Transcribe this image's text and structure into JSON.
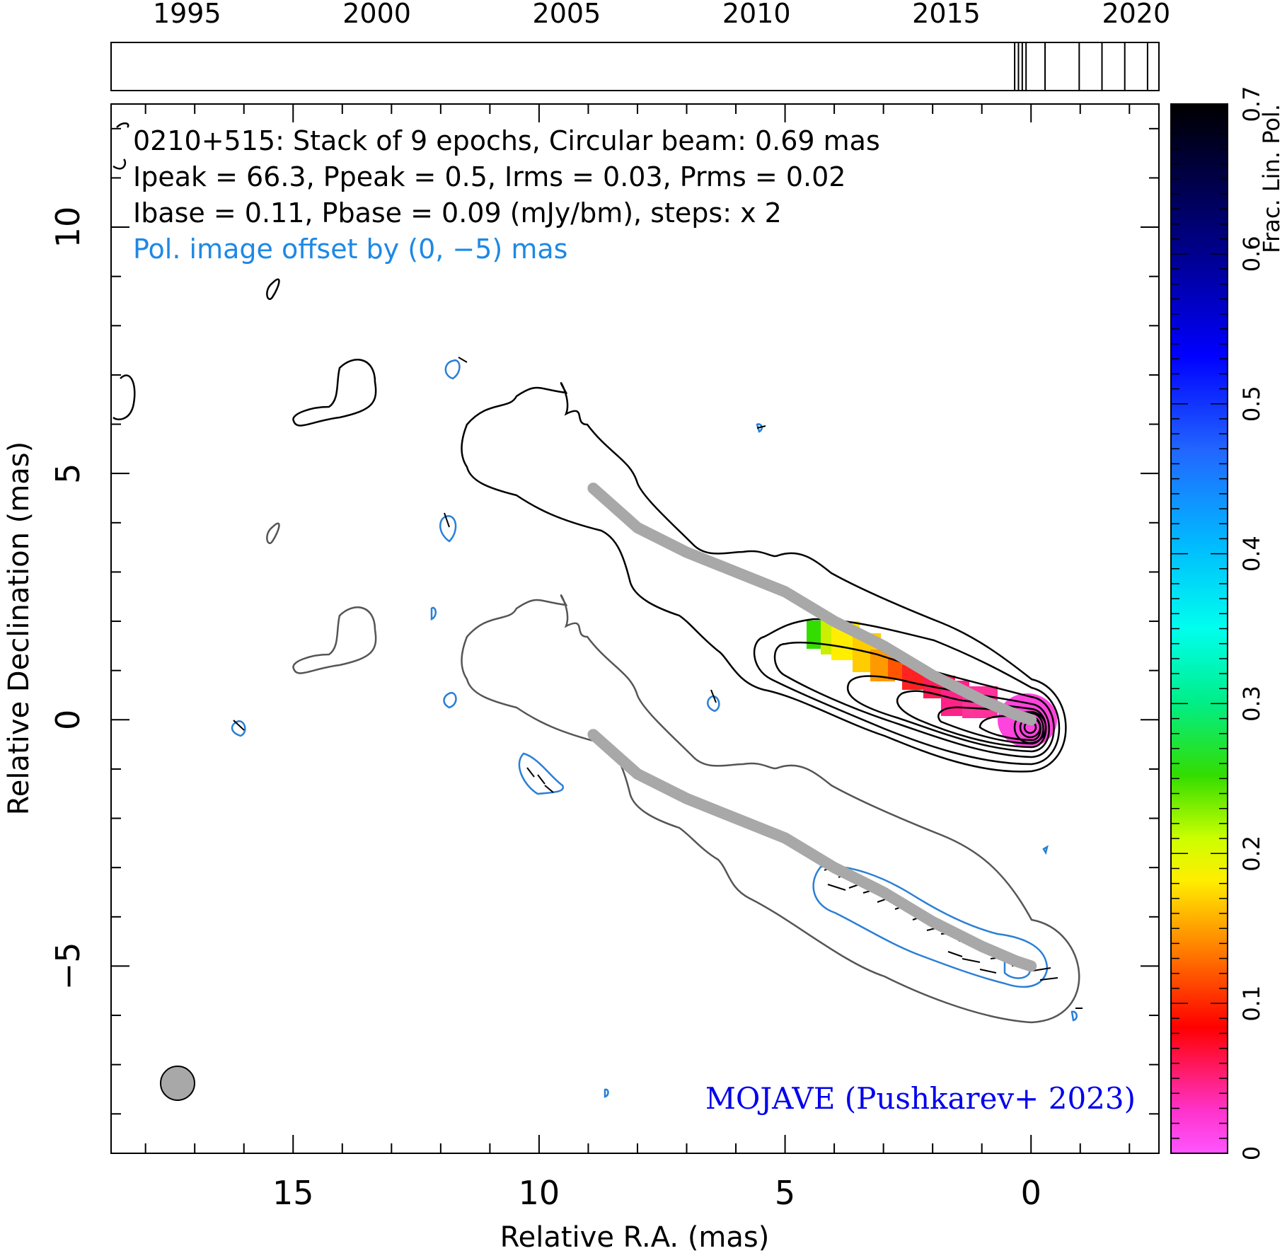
{
  "chart_data": {
    "type": "contour",
    "header": {
      "line1": "0210+515: Stack of 9 epochs, Circular beam: 0.69 mas",
      "line2": "Ipeak = 66.3, Ppeak = 0.5, Irms = 0.03, Prms = 0.02",
      "line3": "Ibase = 0.11, Pbase = 0.09 (mJy/bm), steps: x 2",
      "offset_note": "Pol. image offset by (0, −5) mas"
    },
    "credit": "MOJAVE (Pushkarev+ 2023)",
    "xlabel": "Relative R.A. (mas)",
    "ylabel": "Relative Declination (mas)",
    "colorbar_label": "Frac. Lin. Pol.",
    "xlim": [
      18.7,
      -2.6
    ],
    "ylim": [
      -8.8,
      12.5
    ],
    "x_ticks": [
      "15",
      "10",
      "5",
      "0"
    ],
    "y_ticks": [
      "−5",
      "0",
      "5",
      "10"
    ],
    "colorbar_ticks": [
      "0",
      "0.1",
      "0.2",
      "0.3",
      "0.4",
      "0.5",
      "0.6",
      "0.7"
    ],
    "colorbar_range": [
      0,
      0.7
    ],
    "timeline": {
      "year_labels": [
        "1995",
        "2000",
        "2005",
        "2010",
        "2015",
        "2020"
      ],
      "range": [
        1993,
        2020.6
      ],
      "epochs": [
        2016.8,
        2016.9,
        2017.0,
        2017.1,
        2017.6,
        2018.5,
        2019.1,
        2019.7,
        2020.3
      ]
    },
    "ridge_line": [
      [
        8.9,
        4.7
      ],
      [
        8.0,
        3.9
      ],
      [
        7.0,
        3.4
      ],
      [
        6.0,
        3.0
      ],
      [
        5.0,
        2.6
      ],
      [
        4.0,
        2.0
      ],
      [
        3.0,
        1.5
      ],
      [
        2.0,
        0.9
      ],
      [
        1.0,
        0.4
      ],
      [
        0.3,
        0.1
      ],
      [
        0.0,
        0.0
      ]
    ],
    "beam_fwhm_mas": 0.69,
    "core_position": [
      0,
      0
    ],
    "pol_offset": [
      0,
      -5
    ]
  }
}
